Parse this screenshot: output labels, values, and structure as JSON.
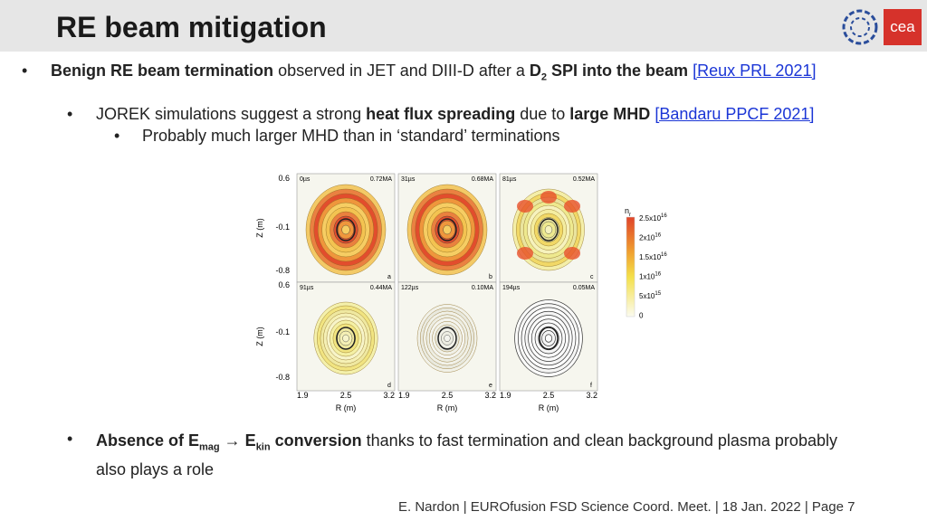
{
  "header": {
    "title": "RE beam mitigation",
    "logo_text": "cea"
  },
  "bullets": [
    {
      "bold_lead": "Benign RE beam termination",
      "text": "observed in JET and DIII-D after a",
      "bold_d": "D",
      "sub": "2",
      "bold_tail": "SPI into the beam",
      "link": "[Reux PRL 2021]"
    },
    {
      "text": "JOREK simulations suggest a strong",
      "bold_a": "heat flux spreading",
      "text_b": "due to",
      "bold_b": "large MHD",
      "link": "[Bandaru PPCF 2021]",
      "sub_bullet": "Probably much larger MHD than in ‘standard’ terminations"
    },
    {
      "bold_a": "Absence of E",
      "sub_a": "mag",
      "arrow": "→ E",
      "sub_b": "kin",
      "bold_b": "conversion",
      "text": "thanks to fast termination and clean background plasma probably also plays a role"
    }
  ],
  "figure": {
    "y_label": "Z (m)",
    "x_label": "R (m)",
    "yticks": [
      "0.6",
      "-0.1",
      "-0.8"
    ],
    "xticks": [
      "1.9",
      "2.5",
      "3.2"
    ],
    "panels": [
      {
        "time": "0µs",
        "current": "0.72MA",
        "letter": "a"
      },
      {
        "time": "31µs",
        "current": "0.68MA",
        "letter": "b"
      },
      {
        "time": "81µs",
        "current": "0.52MA",
        "letter": "c"
      },
      {
        "time": "91µs",
        "current": "0.44MA",
        "letter": "d"
      },
      {
        "time": "122µs",
        "current": "0.10MA",
        "letter": "e"
      },
      {
        "time": "194µs",
        "current": "0.05MA",
        "letter": "f"
      }
    ],
    "colorbar": {
      "label": "n",
      "label_sub": "r",
      "ticks": [
        {
          "base": "2.5x10",
          "exp": "16"
        },
        {
          "base": "2x10",
          "exp": "16"
        },
        {
          "base": "1.5x10",
          "exp": "16"
        },
        {
          "base": "1x10",
          "exp": "16"
        },
        {
          "base": "5x10",
          "exp": "15"
        },
        {
          "base": "0"
        }
      ]
    }
  },
  "footer": "E. Nardon | EUROfusion FSD Science Coord. Meet. | 18 Jan. 2022 | Page 7"
}
